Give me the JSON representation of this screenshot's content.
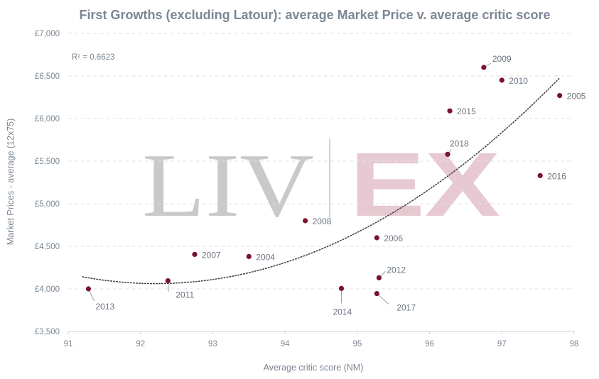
{
  "chart_data": {
    "type": "scatter",
    "title": "First Growths (excluding Latour): average Market Price v. average critic score",
    "xlabel": "Average critic score (NM)",
    "ylabel": "Market Prices - average (12x75)",
    "xlim": [
      91,
      98
    ],
    "ylim": [
      3500,
      7000
    ],
    "x_ticks": [
      "91",
      "92",
      "93",
      "94",
      "95",
      "96",
      "97",
      "98"
    ],
    "y_ticks": [
      "£3,500",
      "£4,000",
      "£4,500",
      "£5,000",
      "£5,500",
      "£6,000",
      "£6,500",
      "£7,000"
    ],
    "grid": "horizontal dashed",
    "legend": "none",
    "annotation": "R² = 0.6623",
    "watermark": {
      "left": "LIV",
      "right": "EX"
    },
    "point_color": "#7a1232",
    "trendline": {
      "type": "polynomial",
      "degree": 2,
      "style": "dotted",
      "color": "#444444",
      "x_range": [
        91.2,
        97.8
      ]
    },
    "points": [
      {
        "label": "2013",
        "x": 91.28,
        "y": 4000
      },
      {
        "label": "2011",
        "x": 92.38,
        "y": 4095
      },
      {
        "label": "2007",
        "x": 92.75,
        "y": 4405
      },
      {
        "label": "2004",
        "x": 93.5,
        "y": 4380
      },
      {
        "label": "2008",
        "x": 94.28,
        "y": 4800
      },
      {
        "label": "2014",
        "x": 94.78,
        "y": 4005
      },
      {
        "label": "2006",
        "x": 95.27,
        "y": 4600
      },
      {
        "label": "2012",
        "x": 95.3,
        "y": 4130
      },
      {
        "label": "2017",
        "x": 95.27,
        "y": 3945
      },
      {
        "label": "2015",
        "x": 96.28,
        "y": 6090
      },
      {
        "label": "2018",
        "x": 96.25,
        "y": 5580
      },
      {
        "label": "2009",
        "x": 96.75,
        "y": 6600
      },
      {
        "label": "2010",
        "x": 97.0,
        "y": 6450
      },
      {
        "label": "2005",
        "x": 97.8,
        "y": 6270
      },
      {
        "label": "2016",
        "x": 97.53,
        "y": 5330
      }
    ]
  }
}
